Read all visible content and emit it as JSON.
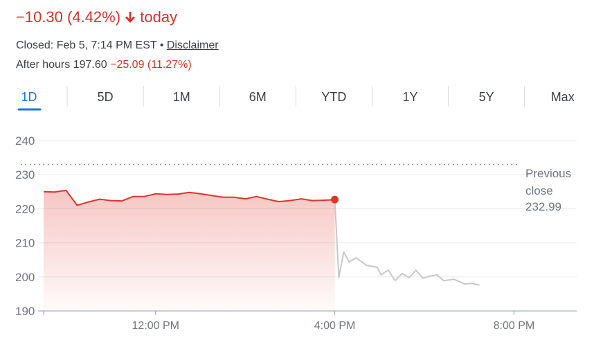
{
  "header": {
    "change": "−10.30 (4.42%)",
    "change_period": "today",
    "status": "Closed: Feb 5, 7:14 PM EST",
    "separator": "•",
    "disclaimer": "Disclaimer",
    "after_hours_label": "After hours 197.60",
    "after_hours_change": "−25.09 (11.27%)"
  },
  "tabs": [
    "1D",
    "5D",
    "1M",
    "6M",
    "YTD",
    "1Y",
    "5Y",
    "Max"
  ],
  "chart_data": {
    "type": "line",
    "series": [
      {
        "color": "#e0342b",
        "x": [
          9.5,
          9.75,
          10,
          10.25,
          10.5,
          10.75,
          11,
          11.25,
          11.5,
          11.75,
          12,
          12.25,
          12.5,
          12.75,
          13,
          13.25,
          13.5,
          13.75,
          14,
          14.25,
          14.5,
          14.75,
          15,
          15.25,
          15.5,
          15.75,
          16
        ],
        "values": [
          225.0,
          224.9,
          225.4,
          221.0,
          222.0,
          222.8,
          222.4,
          222.3,
          223.6,
          223.6,
          224.4,
          224.2,
          224.3,
          224.8,
          224.4,
          223.9,
          223.4,
          223.4,
          222.9,
          223.6,
          222.8,
          222.1,
          222.4,
          222.9,
          222.4,
          222.5,
          222.69
        ]
      },
      {
        "color": "#c8c8c8",
        "x": [
          16,
          16.09,
          16.2,
          16.32,
          16.48,
          16.71,
          16.95,
          17.03,
          17.19,
          17.35,
          17.5,
          17.66,
          17.81,
          17.97,
          18.12,
          18.28,
          18.43,
          18.66,
          18.9,
          19.05,
          19.23
        ],
        "values": [
          222.69,
          199.8,
          207.3,
          204.4,
          205.6,
          203.4,
          202.8,
          200.6,
          202.0,
          198.9,
          201.0,
          199.8,
          202.0,
          199.6,
          200.2,
          200.6,
          198.9,
          199.3,
          197.9,
          198.1,
          197.6
        ]
      }
    ],
    "previous_close": 232.99,
    "previous_close_label": "Previous close",
    "xlim": [
      9.5,
      21.4
    ],
    "ylim": [
      190,
      240
    ],
    "xticks": [
      {
        "value": 12,
        "label": "12:00 PM"
      },
      {
        "value": 16,
        "label": "4:00 PM"
      },
      {
        "value": 20,
        "label": "8:00 PM"
      }
    ],
    "yticks": [
      190,
      200,
      210,
      220,
      230,
      240
    ],
    "grid": true
  }
}
